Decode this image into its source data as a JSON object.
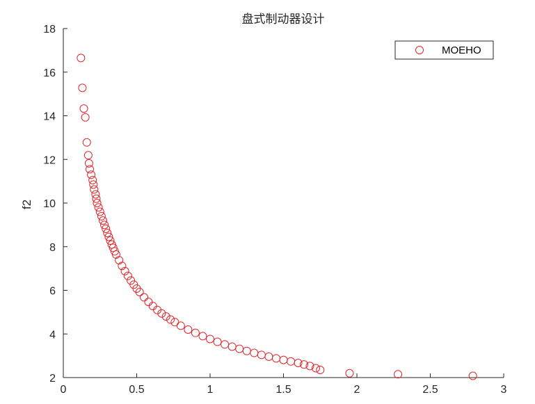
{
  "chart_data": {
    "type": "scatter",
    "title": "盘式制动器设计",
    "xlabel": "",
    "ylabel": "f2",
    "xlim": [
      0,
      3
    ],
    "ylim": [
      2,
      18
    ],
    "xticks": [
      "0",
      "0.5",
      "1",
      "1.5",
      "2",
      "2.5",
      "3"
    ],
    "yticks": [
      "2",
      "4",
      "6",
      "8",
      "10",
      "12",
      "14",
      "16",
      "18"
    ],
    "grid": false,
    "legend_position": "top-right",
    "marker": "circle-open",
    "color": "#e0242b",
    "series": [
      {
        "name": "MOEHO",
        "points": [
          [
            0.12,
            16.65
          ],
          [
            0.13,
            15.28
          ],
          [
            0.14,
            14.33
          ],
          [
            0.15,
            13.93
          ],
          [
            0.16,
            12.78
          ],
          [
            0.17,
            12.19
          ],
          [
            0.175,
            11.82
          ],
          [
            0.18,
            11.55
          ],
          [
            0.19,
            11.3
          ],
          [
            0.2,
            11.05
          ],
          [
            0.205,
            10.85
          ],
          [
            0.21,
            10.62
          ],
          [
            0.22,
            10.4
          ],
          [
            0.225,
            10.2
          ],
          [
            0.23,
            10.0
          ],
          [
            0.24,
            9.8
          ],
          [
            0.25,
            9.6
          ],
          [
            0.26,
            9.4
          ],
          [
            0.27,
            9.2
          ],
          [
            0.28,
            9.0
          ],
          [
            0.29,
            8.82
          ],
          [
            0.3,
            8.63
          ],
          [
            0.31,
            8.45
          ],
          [
            0.32,
            8.28
          ],
          [
            0.33,
            8.1
          ],
          [
            0.34,
            7.95
          ],
          [
            0.35,
            7.79
          ],
          [
            0.36,
            7.64
          ],
          [
            0.38,
            7.38
          ],
          [
            0.4,
            7.12
          ],
          [
            0.42,
            6.88
          ],
          [
            0.44,
            6.66
          ],
          [
            0.46,
            6.45
          ],
          [
            0.48,
            6.26
          ],
          [
            0.5,
            6.08
          ],
          [
            0.52,
            5.92
          ],
          [
            0.55,
            5.68
          ],
          [
            0.58,
            5.47
          ],
          [
            0.61,
            5.28
          ],
          [
            0.64,
            5.1
          ],
          [
            0.67,
            4.94
          ],
          [
            0.7,
            4.8
          ],
          [
            0.73,
            4.66
          ],
          [
            0.76,
            4.54
          ],
          [
            0.8,
            4.38
          ],
          [
            0.85,
            4.2
          ],
          [
            0.9,
            4.05
          ],
          [
            0.95,
            3.9
          ],
          [
            1.0,
            3.77
          ],
          [
            1.05,
            3.64
          ],
          [
            1.1,
            3.52
          ],
          [
            1.15,
            3.42
          ],
          [
            1.2,
            3.32
          ],
          [
            1.25,
            3.22
          ],
          [
            1.3,
            3.13
          ],
          [
            1.35,
            3.04
          ],
          [
            1.4,
            2.96
          ],
          [
            1.45,
            2.88
          ],
          [
            1.5,
            2.81
          ],
          [
            1.55,
            2.74
          ],
          [
            1.6,
            2.67
          ],
          [
            1.64,
            2.6
          ],
          [
            1.68,
            2.53
          ],
          [
            1.72,
            2.43
          ],
          [
            1.75,
            2.35
          ],
          [
            1.95,
            2.2
          ],
          [
            2.28,
            2.15
          ],
          [
            2.79,
            2.08
          ]
        ]
      }
    ]
  }
}
